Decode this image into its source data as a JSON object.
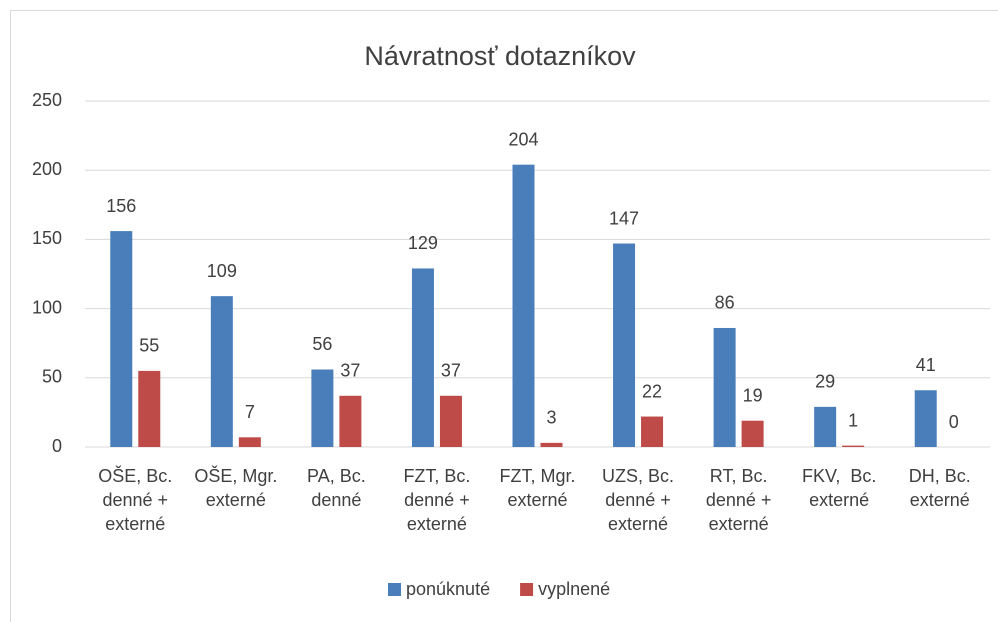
{
  "chart_data": {
    "type": "bar",
    "title": "Návratnosť dotazníkov",
    "categories": [
      "OŠE, Bc. denné + externé",
      "OŠE, Mgr. externé",
      "PA, Bc. denné",
      "FZT, Bc. denné + externé",
      "FZT, Mgr. externé",
      "UZS, Bc. denné + externé",
      "RT, Bc. denné + externé",
      "FKV,  Bc. externé",
      "DH, Bc. externé"
    ],
    "series": [
      {
        "name": "ponúknuté",
        "color": "#4a7ebb",
        "values": [
          156,
          109,
          56,
          129,
          204,
          147,
          86,
          29,
          41
        ]
      },
      {
        "name": "vyplnené",
        "color": "#be4b48",
        "values": [
          55,
          7,
          37,
          37,
          3,
          22,
          19,
          1,
          0
        ]
      }
    ],
    "ylim": [
      0,
      250
    ],
    "yticks": [
      0,
      50,
      100,
      150,
      200,
      250
    ],
    "grid": true,
    "legend": "bottom"
  }
}
